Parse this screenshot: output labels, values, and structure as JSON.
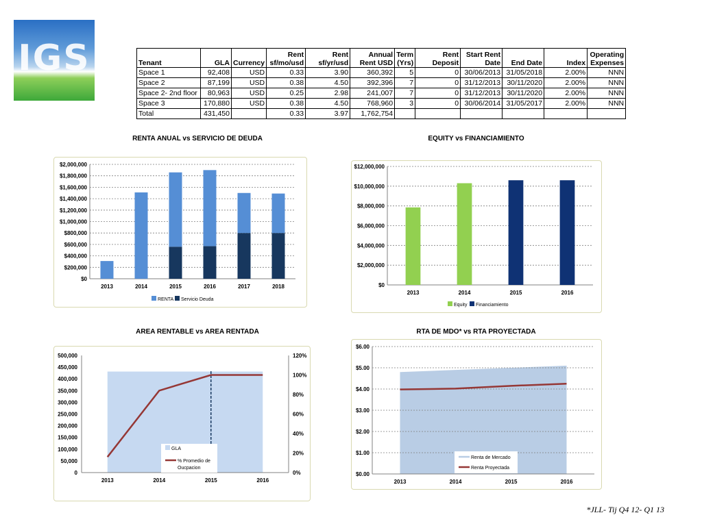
{
  "logo_text": "IGS",
  "table": {
    "headers_top": [
      "",
      "",
      "",
      "Rent",
      "Rent",
      "Annual",
      "Term",
      "Rent",
      "Start Rent",
      "",
      "",
      "Operating"
    ],
    "headers_bottom": [
      "Tenant",
      "GLA",
      "Currency",
      "sf/mo/usd",
      "sf/yr/usd",
      "Rent USD",
      "(Yrs)",
      "Deposit",
      "Date",
      "End Date",
      "Index",
      "Expenses"
    ],
    "rows": [
      [
        "Space 1",
        "92,408",
        "USD",
        "0.33",
        "3.90",
        "360,392",
        "5",
        "0",
        "30/06/2013",
        "31/05/2018",
        "2.00%",
        "NNN"
      ],
      [
        "Space 2",
        "87,199",
        "USD",
        "0.38",
        "4.50",
        "392,396",
        "7",
        "0",
        "31/12/2013",
        "30/11/2020",
        "2.00%",
        "NNN"
      ],
      [
        "Space 2- 2nd floor",
        "80,963",
        "USD",
        "0.25",
        "2.98",
        "241,007",
        "7",
        "0",
        "31/12/2013",
        "30/11/2020",
        "2.00%",
        "NNN"
      ],
      [
        "Space 3",
        "170,880",
        "USD",
        "0.38",
        "4.50",
        "768,960",
        "3",
        "0",
        "30/06/2014",
        "31/05/2017",
        "2.00%",
        "NNN"
      ],
      [
        "Total",
        "431,450",
        "",
        "0.33",
        "3.97",
        "1,762,754",
        "",
        "",
        "",
        "",
        "",
        ""
      ]
    ]
  },
  "chart_data": [
    {
      "type": "bar",
      "stacked": true,
      "title": "RENTA ANUAL  vs SERVICIO DE DEUDA",
      "categories": [
        "2013",
        "2014",
        "2015",
        "2016",
        "2017",
        "2018"
      ],
      "series": [
        {
          "name": "Servicio Deuda",
          "color": "#17375e",
          "values": [
            0,
            0,
            560000,
            570000,
            800000,
            800000
          ]
        },
        {
          "name": "RENTA",
          "color": "#558ed5",
          "values": [
            310000,
            1510000,
            1300000,
            1330000,
            700000,
            690000
          ]
        }
      ],
      "ylim": [
        0,
        2000000
      ],
      "yticks": [
        "$0",
        "$200,000",
        "$400,000",
        "$600,000",
        "$800,000",
        "$1,000,000",
        "$1,200,000",
        "$1,400,000",
        "$1,600,000",
        "$1,800,000",
        "$2,000,000"
      ],
      "legend": [
        "RENTA",
        "Servicio Deuda"
      ],
      "legend_position": "bottom",
      "grid": true
    },
    {
      "type": "bar",
      "title": "EQUITY   vs  FINANCIAMIENTO",
      "categories": [
        "2013",
        "2014",
        "2015",
        "2016"
      ],
      "series": [
        {
          "name": "Equity",
          "color": "#92d050",
          "values": [
            7850000,
            10300000,
            0,
            0
          ]
        },
        {
          "name": "Financiamiento",
          "color": "#0f3274",
          "values": [
            0,
            0,
            10600000,
            10600000
          ]
        }
      ],
      "ylim": [
        0,
        12000000
      ],
      "yticks": [
        "$0",
        "$2,000,000",
        "$4,000,000",
        "$6,000,000",
        "$8,000,000",
        "$10,000,000",
        "$12,000,000"
      ],
      "legend": [
        "Equity",
        "Financiamiento"
      ],
      "legend_position": "bottom",
      "grid": true
    },
    {
      "type": "area",
      "title": "AREA RENTABLE vs AREA RENTADA",
      "categories": [
        "2013",
        "2014",
        "2015",
        "2016"
      ],
      "series": [
        {
          "name": "GLA",
          "axis": "left",
          "color": "#c6d9f1",
          "values": [
            431450,
            431450,
            431450,
            431450
          ]
        },
        {
          "name": "% Promedio de Oucpacion",
          "axis": "right",
          "type": "line",
          "color": "#953735",
          "values": [
            0.16,
            0.84,
            1.0,
            1.0
          ]
        }
      ],
      "ylim": [
        0,
        500000
      ],
      "yticks": [
        "0",
        "50,000",
        "100,000",
        "150,000",
        "200,000",
        "250,000",
        "300,000",
        "350,000",
        "400,000",
        "450,000",
        "500,000"
      ],
      "y2lim": [
        0,
        1.2
      ],
      "y2ticks": [
        "0%",
        "20%",
        "40%",
        "60%",
        "80%",
        "100%",
        "120%"
      ],
      "marker_line_x": "2015",
      "legend": [
        "GLA",
        "% Promedio de",
        "Oucpacion"
      ],
      "legend_position": "bottom-right",
      "grid": false
    },
    {
      "type": "area",
      "title": "RTA DE MDO*    vs RTA PROYECTADA",
      "categories": [
        "2013",
        "2014",
        "2015",
        "2016"
      ],
      "series": [
        {
          "name": "Renta de Mercado",
          "color": "#b9cde5",
          "values": [
            4.8,
            4.9,
            5.0,
            5.1
          ]
        },
        {
          "name": "Renta Proyectada",
          "type": "line",
          "color": "#953735",
          "values": [
            3.98,
            4.02,
            4.15,
            4.25
          ]
        }
      ],
      "ylim": [
        0,
        6
      ],
      "yticks": [
        "$0.00",
        "$1.00",
        "$2.00",
        "$3.00",
        "$4.00",
        "$5.00",
        "$6.00"
      ],
      "legend": [
        "Renta de Mercado",
        "Renta Proyectada"
      ],
      "legend_position": "bottom-right",
      "grid": true
    }
  ],
  "footnote": "*JLL- Tij Q4 12- Q1 13"
}
